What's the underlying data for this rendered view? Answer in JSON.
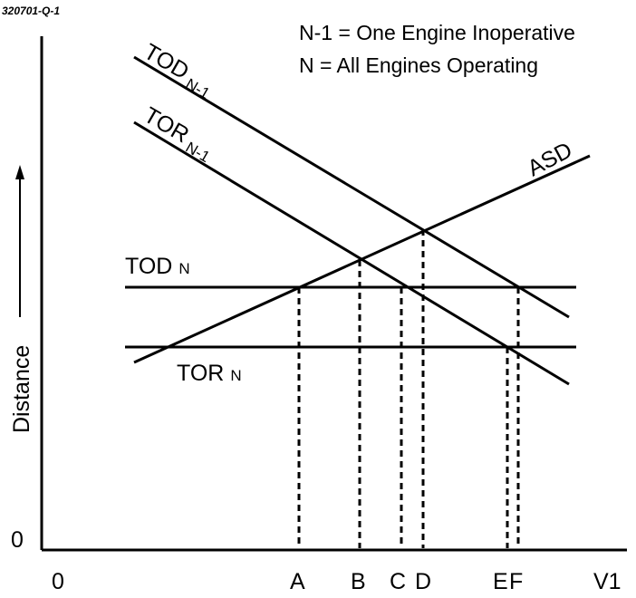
{
  "question_id": "320701-Q-1",
  "legend": {
    "line1": "N-1 = One Engine Inoperative",
    "line2": "N = All Engines Operating"
  },
  "axes": {
    "y_label": "Distance",
    "y_origin": "0",
    "x_origin": "0",
    "x_end": "V1"
  },
  "lines": {
    "tod_n1": {
      "main": "TOD",
      "sub": "N-1"
    },
    "tor_n1": {
      "main": "TOR",
      "sub": "N-1"
    },
    "asd": "ASD",
    "tod_n": {
      "main": "TOD",
      "sub": "N"
    },
    "tor_n": {
      "main": "TOR",
      "sub": "N"
    }
  },
  "points": [
    "A",
    "B",
    "C",
    "D",
    "E",
    "F"
  ]
}
